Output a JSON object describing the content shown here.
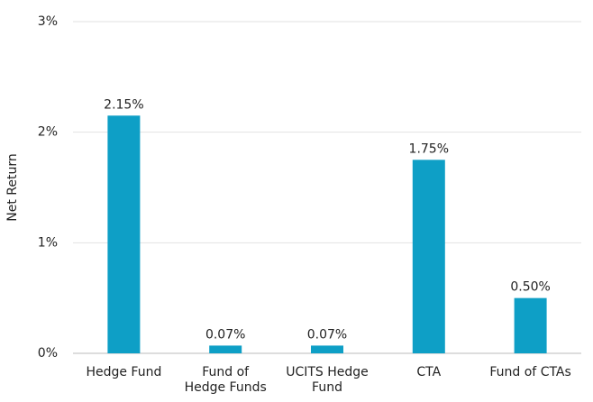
{
  "chart_data": {
    "type": "bar",
    "y_axis_label": "Net Return",
    "categories": [
      "Hedge Fund",
      "Fund of\nHedge Funds",
      "UCITS Hedge\nFund",
      "CTA",
      "Fund of CTAs"
    ],
    "values": [
      2.15,
      0.07,
      0.07,
      1.75,
      0.5
    ],
    "value_labels": [
      "2.15%",
      "0.07%",
      "0.07%",
      "1.75%",
      "0.50%"
    ],
    "color": "#0e9fc6",
    "ylim": [
      0,
      3
    ],
    "yticks": [
      {
        "value": 0,
        "label": "0%"
      },
      {
        "value": 1,
        "label": "1%"
      },
      {
        "value": 2,
        "label": "2%"
      },
      {
        "value": 3,
        "label": "3%"
      }
    ],
    "grid": true
  }
}
